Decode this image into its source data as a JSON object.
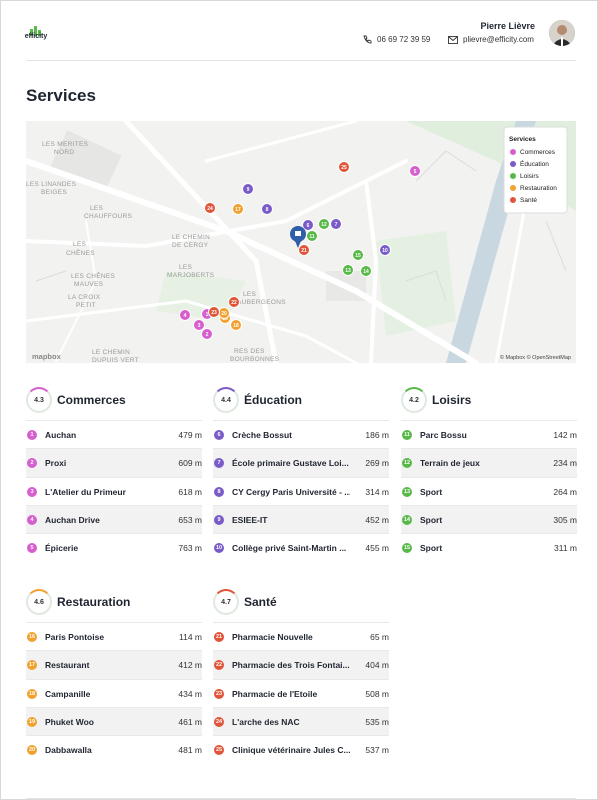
{
  "header": {
    "brand": "efficity",
    "agent_name": "Pierre Lièvre",
    "phone": "06 69 72 39 59",
    "email": "plievre@efficity.com"
  },
  "section_title": "Services",
  "map": {
    "legend_title": "Services",
    "labels": [
      "LES MERITES",
      "NORD",
      "LES LINANDES",
      "BEIGES",
      "LES",
      "CHAUFFOURS",
      "LES",
      "CHÊNES",
      "LES CHÊNES",
      "MAUVES",
      "LA CROIX",
      "PETIT",
      "LE CHEMIN",
      "DE CERGY",
      "LES",
      "MARJOBERTS",
      "LES",
      "AUBERGEONS",
      "RES DES",
      "BOURBONNES",
      "LE CHEMIN",
      "DUPUIS VERT"
    ],
    "attribution": "© Mapbox © OpenStreetMap",
    "logo": "mapbox"
  },
  "categories": [
    {
      "name": "Commerces",
      "score": 4.3,
      "color": "#d65fcf",
      "items": [
        {
          "num": 1,
          "name": "Auchan",
          "distance": "479 m"
        },
        {
          "num": 2,
          "name": "Proxi",
          "distance": "609 m"
        },
        {
          "num": 3,
          "name": "L'Atelier du Primeur",
          "distance": "618 m"
        },
        {
          "num": 4,
          "name": "Auchan Drive",
          "distance": "653 m"
        },
        {
          "num": 5,
          "name": "Épicerie",
          "distance": "763 m"
        }
      ]
    },
    {
      "name": "Éducation",
      "score": 4.4,
      "color": "#7a5cc9",
      "items": [
        {
          "num": 6,
          "name": "Crèche Bossut",
          "distance": "186 m"
        },
        {
          "num": 7,
          "name": "École primaire Gustave Loi...",
          "distance": "269 m"
        },
        {
          "num": 8,
          "name": "CY Cergy Paris Université - ...",
          "distance": "314 m"
        },
        {
          "num": 9,
          "name": "ESIEE-IT",
          "distance": "452 m"
        },
        {
          "num": 10,
          "name": "Collège privé Saint-Martin ...",
          "distance": "455 m"
        }
      ]
    },
    {
      "name": "Loisirs",
      "score": 4.2,
      "color": "#57b947",
      "items": [
        {
          "num": 11,
          "name": "Parc Bossu",
          "distance": "142 m"
        },
        {
          "num": 12,
          "name": "Terrain de jeux",
          "distance": "234 m"
        },
        {
          "num": 13,
          "name": "Sport",
          "distance": "264 m"
        },
        {
          "num": 14,
          "name": "Sport",
          "distance": "305 m"
        },
        {
          "num": 15,
          "name": "Sport",
          "distance": "311 m"
        }
      ]
    },
    {
      "name": "Restauration",
      "score": 4.6,
      "color": "#f0a12f",
      "items": [
        {
          "num": 16,
          "name": "Paris Pontoise",
          "distance": "114 m"
        },
        {
          "num": 17,
          "name": "Restaurant",
          "distance": "412 m"
        },
        {
          "num": 18,
          "name": "Campanille",
          "distance": "434 m"
        },
        {
          "num": 19,
          "name": "Phuket Woo",
          "distance": "461 m"
        },
        {
          "num": 20,
          "name": "Dabbawalla",
          "distance": "481 m"
        }
      ]
    },
    {
      "name": "Santé",
      "score": 4.7,
      "color": "#e0553a",
      "items": [
        {
          "num": 21,
          "name": "Pharmacie Nouvelle",
          "distance": "65 m"
        },
        {
          "num": 22,
          "name": "Pharmacie des Trois Fontai...",
          "distance": "404 m"
        },
        {
          "num": 23,
          "name": "Pharmacie de l'Etoile",
          "distance": "508 m"
        },
        {
          "num": 24,
          "name": "L'arche des NAC",
          "distance": "535 m"
        },
        {
          "num": 25,
          "name": "Clinique vétérinaire Jules C...",
          "distance": "537 m"
        }
      ]
    }
  ]
}
